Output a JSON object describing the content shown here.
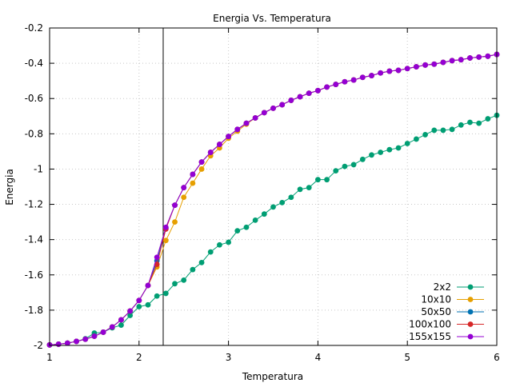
{
  "chart_data": {
    "type": "line",
    "title": "Energia Vs. Temperatura",
    "xlabel": "Temperatura",
    "ylabel": "Energia",
    "xlim": [
      1,
      6
    ],
    "ylim": [
      -2,
      -0.2
    ],
    "grid": true,
    "legend_position": "bottom-right",
    "x_ticks": [
      1,
      2,
      3,
      4,
      5,
      6
    ],
    "x_tick_labels": [
      "1",
      "2",
      "3",
      "4",
      "5",
      "6"
    ],
    "y_ticks": [
      -2,
      -1.8,
      -1.6,
      -1.4,
      -1.2,
      -1,
      -0.8,
      -0.6,
      -0.4,
      -0.2
    ],
    "y_tick_labels": [
      "-2",
      "-1.8",
      "-1.6",
      "-1.4",
      "-1.2",
      "-1",
      "-0.8",
      "-0.6",
      "-0.4",
      "-0.2"
    ],
    "vertical_line_x": 2.27,
    "x": [
      1.0,
      1.1,
      1.2,
      1.3,
      1.4,
      1.5,
      1.6,
      1.7,
      1.8,
      1.9,
      2.0,
      2.1,
      2.2,
      2.3,
      2.4,
      2.5,
      2.6,
      2.7,
      2.8,
      2.9,
      3.0,
      3.1,
      3.2,
      3.3,
      3.4,
      3.5,
      3.6,
      3.7,
      3.8,
      3.9,
      4.0,
      4.1,
      4.2,
      4.3,
      4.4,
      4.5,
      4.6,
      4.7,
      4.8,
      4.9,
      5.0,
      5.1,
      5.2,
      5.3,
      5.4,
      5.5,
      5.6,
      5.7,
      5.8,
      5.9,
      6.0
    ],
    "series": [
      {
        "name": "2x2",
        "color": "#009e73",
        "values": [
          -1.997,
          -1.993,
          -1.987,
          -1.977,
          -1.962,
          -1.93,
          -1.925,
          -1.9,
          -1.885,
          -1.83,
          -1.78,
          -1.77,
          -1.72,
          -1.705,
          -1.65,
          -1.63,
          -1.57,
          -1.53,
          -1.47,
          -1.43,
          -1.415,
          -1.35,
          -1.33,
          -1.29,
          -1.255,
          -1.215,
          -1.19,
          -1.16,
          -1.115,
          -1.105,
          -1.06,
          -1.06,
          -1.01,
          -0.985,
          -0.975,
          -0.945,
          -0.92,
          -0.905,
          -0.89,
          -0.88,
          -0.855,
          -0.83,
          -0.805,
          -0.78,
          -0.78,
          -0.775,
          -0.75,
          -0.735,
          -0.74,
          -0.715,
          -0.695
        ]
      },
      {
        "name": "10x10",
        "color": "#e69f00",
        "values": [
          -1.997,
          -1.993,
          -1.987,
          -1.977,
          -1.965,
          -1.948,
          -1.925,
          -1.895,
          -1.855,
          -1.805,
          -1.745,
          -1.66,
          -1.555,
          -1.405,
          -1.3,
          -1.16,
          -1.08,
          -1.0,
          -0.925,
          -0.88,
          -0.825,
          -0.785,
          -0.745,
          -0.71,
          -0.68,
          -0.655,
          -0.635,
          -0.61,
          -0.59,
          -0.57,
          -0.555,
          -0.535,
          -0.52,
          -0.505,
          -0.495,
          -0.48,
          -0.47,
          -0.455,
          -0.445,
          -0.44,
          -0.43,
          -0.42,
          -0.41,
          -0.405,
          -0.395,
          -0.385,
          -0.38,
          -0.37,
          -0.365,
          -0.36,
          -0.35
        ]
      },
      {
        "name": "50x50",
        "color": "#0072b2",
        "values": [
          -1.997,
          -1.993,
          -1.987,
          -1.977,
          -1.965,
          -1.948,
          -1.925,
          -1.895,
          -1.855,
          -1.805,
          -1.745,
          -1.66,
          -1.52,
          -1.335,
          -1.205,
          -1.105,
          -1.03,
          -0.96,
          -0.905,
          -0.86,
          -0.815,
          -0.775,
          -0.74,
          -0.71,
          -0.68,
          -0.655,
          -0.635,
          -0.61,
          -0.59,
          -0.57,
          -0.555,
          -0.535,
          -0.52,
          -0.505,
          -0.495,
          -0.48,
          -0.47,
          -0.455,
          -0.445,
          -0.44,
          -0.43,
          -0.42,
          -0.41,
          -0.405,
          -0.395,
          -0.385,
          -0.38,
          -0.37,
          -0.365,
          -0.36,
          -0.35
        ]
      },
      {
        "name": "100x100",
        "color": "#d62728",
        "values": [
          -1.997,
          -1.993,
          -1.987,
          -1.977,
          -1.965,
          -1.948,
          -1.925,
          -1.895,
          -1.855,
          -1.805,
          -1.745,
          -1.66,
          -1.54,
          -1.34,
          -1.205,
          -1.105,
          -1.03,
          -0.96,
          -0.905,
          -0.86,
          -0.815,
          -0.775,
          -0.74,
          -0.71,
          -0.68,
          -0.655,
          -0.635,
          -0.61,
          -0.59,
          -0.57,
          -0.555,
          -0.535,
          -0.52,
          -0.505,
          -0.495,
          -0.48,
          -0.47,
          -0.455,
          -0.445,
          -0.44,
          -0.43,
          -0.42,
          -0.41,
          -0.405,
          -0.395,
          -0.385,
          -0.38,
          -0.37,
          -0.365,
          -0.36,
          -0.35
        ]
      },
      {
        "name": "155x155",
        "color": "#9400d3",
        "values": [
          -1.997,
          -1.993,
          -1.987,
          -1.977,
          -1.965,
          -1.948,
          -1.925,
          -1.895,
          -1.855,
          -1.805,
          -1.745,
          -1.66,
          -1.5,
          -1.33,
          -1.205,
          -1.105,
          -1.03,
          -0.96,
          -0.905,
          -0.86,
          -0.815,
          -0.775,
          -0.74,
          -0.71,
          -0.68,
          -0.655,
          -0.635,
          -0.61,
          -0.59,
          -0.57,
          -0.555,
          -0.535,
          -0.52,
          -0.505,
          -0.495,
          -0.48,
          -0.47,
          -0.455,
          -0.445,
          -0.44,
          -0.43,
          -0.42,
          -0.41,
          -0.405,
          -0.395,
          -0.385,
          -0.38,
          -0.37,
          -0.365,
          -0.36,
          -0.35
        ]
      }
    ]
  }
}
